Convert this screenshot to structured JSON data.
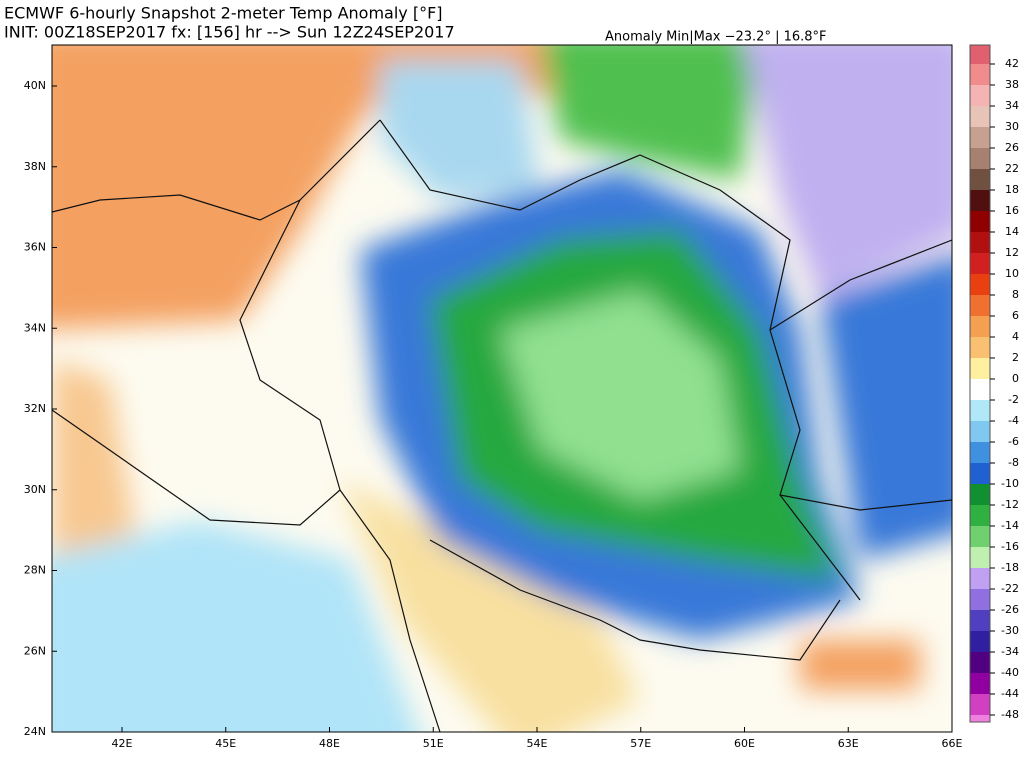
{
  "header": {
    "title": "ECMWF 6-hourly Snapshot 2-meter Temp Anomaly [°F]",
    "subtitle": "INIT: 00Z18SEP2017 fx: [156] hr --> Sun 12Z24SEP2017",
    "anomaly": "Anomaly Min|Max −23.2° | 16.8°F"
  },
  "map": {
    "lat_labels": [
      "40N",
      "38N",
      "36N",
      "34N",
      "32N",
      "30N",
      "28N",
      "26N",
      "24N"
    ],
    "lon_labels": [
      "42E",
      "45E",
      "48E",
      "51E",
      "54E",
      "57E",
      "60E",
      "63E",
      "66E"
    ]
  },
  "colorbar": {
    "labels": [
      42,
      38,
      34,
      30,
      26,
      22,
      18,
      16,
      14,
      12,
      10,
      8,
      6,
      4,
      2,
      0,
      -2,
      -4,
      -6,
      -8,
      -10,
      -12,
      -14,
      -16,
      -18,
      -22,
      -26,
      -30,
      -34,
      -40,
      -44,
      -48
    ],
    "colors": [
      "#e06070",
      "#f08c8c",
      "#f4b4b4",
      "#e8c4b8",
      "#c8a090",
      "#a88070",
      "#705040",
      "#501010",
      "#900000",
      "#b01010",
      "#d02020",
      "#e84010",
      "#f07030",
      "#f4a050",
      "#f8c070",
      "#fff0a0",
      "#ffffff",
      "#b0e8f8",
      "#80c8f0",
      "#4090e0",
      "#2060d0",
      "#109030",
      "#30b040",
      "#70d070",
      "#c0f0b0",
      "#c0a0f0",
      "#9070e0",
      "#5040c0",
      "#3020a0",
      "#500080",
      "#9000a0",
      "#d040c0",
      "#f080e0"
    ]
  }
}
